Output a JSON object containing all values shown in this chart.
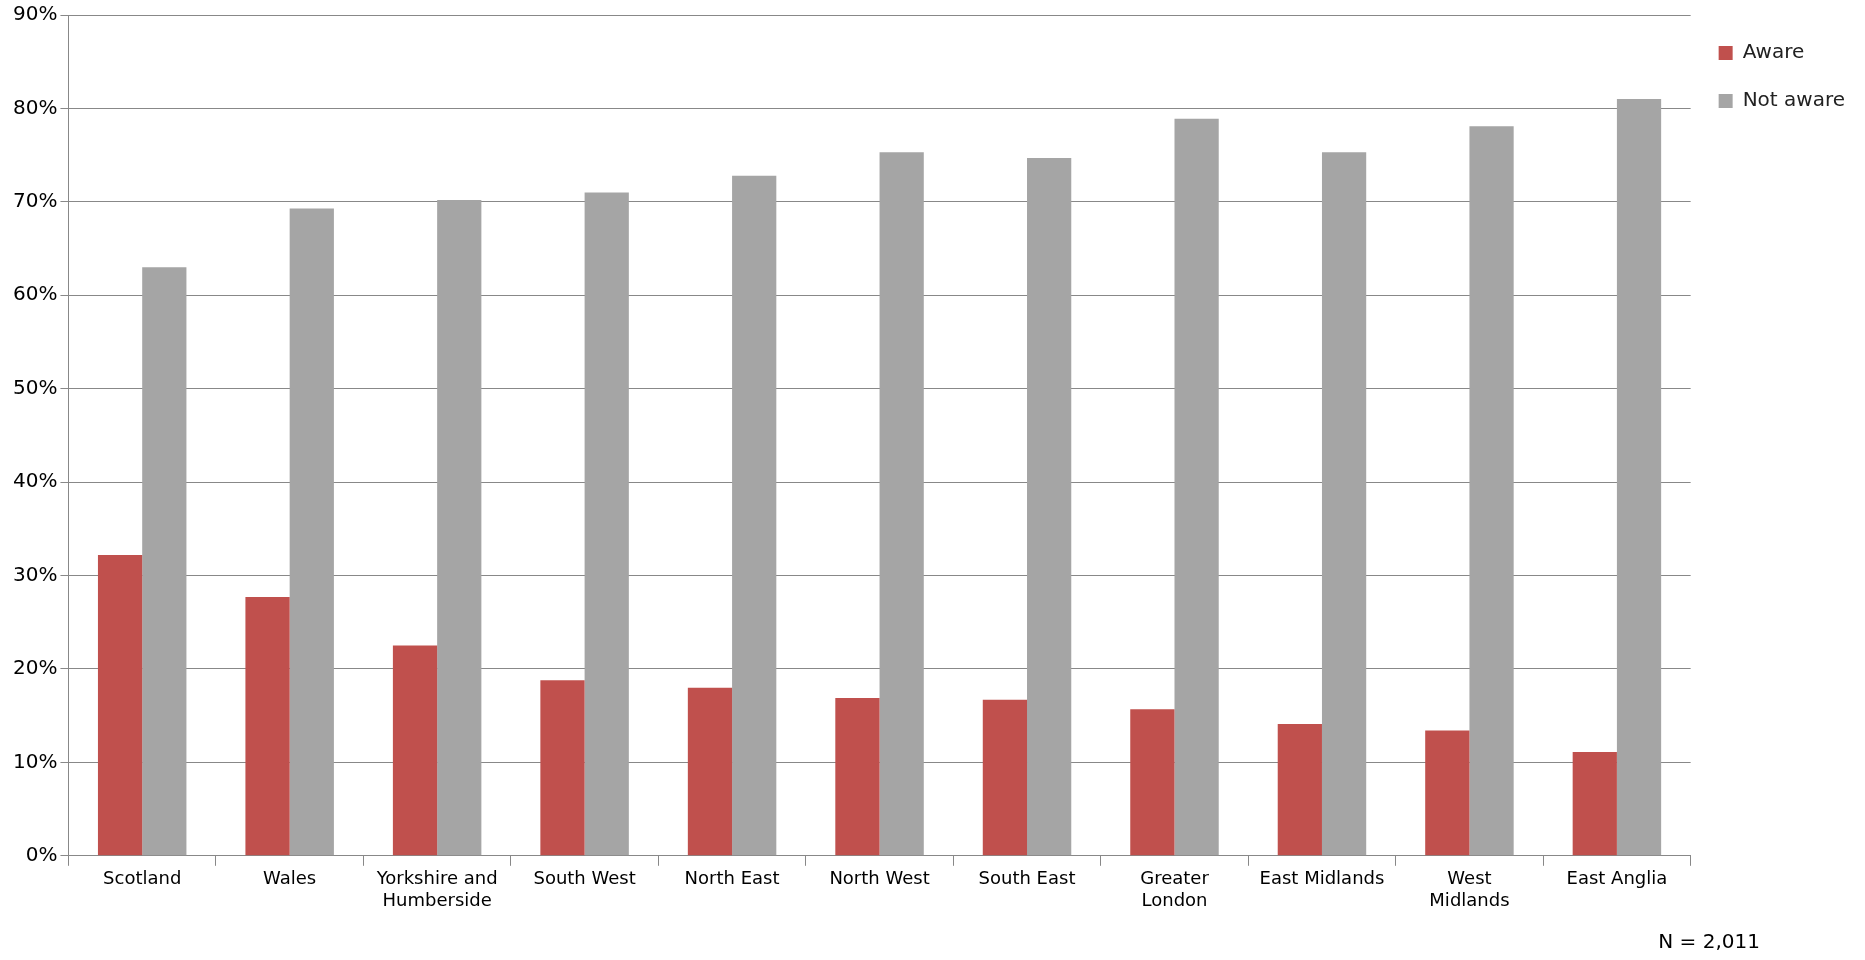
{
  "chart_data": {
    "type": "bar",
    "categories": [
      "Scotland",
      "Wales",
      "Yorkshire and Humberside",
      "South West",
      "North East",
      "North West",
      "South East",
      "Greater London",
      "East Midlands",
      "West Midlands",
      "East Anglia"
    ],
    "series": [
      {
        "name": "Aware",
        "color": "#c0504d",
        "values": [
          32.2,
          27.7,
          22.5,
          18.8,
          18.0,
          16.9,
          16.7,
          15.7,
          14.1,
          13.4,
          11.1
        ]
      },
      {
        "name": "Not aware",
        "color": "#a5a5a5",
        "values": [
          63.0,
          69.3,
          70.2,
          71.0,
          72.8,
          75.3,
          74.7,
          78.9,
          75.3,
          78.1,
          81.0
        ]
      }
    ],
    "ylim": [
      0,
      90
    ],
    "yticks": [
      {
        "value": 0,
        "label": "0%"
      },
      {
        "value": 10,
        "label": "10%"
      },
      {
        "value": 20,
        "label": "20%"
      },
      {
        "value": 30,
        "label": "30%"
      },
      {
        "value": 40,
        "label": "40%"
      },
      {
        "value": 50,
        "label": "50%"
      },
      {
        "value": 60,
        "label": "60%"
      },
      {
        "value": 70,
        "label": "70%"
      },
      {
        "value": 80,
        "label": "80%"
      },
      {
        "value": 90,
        "label": "90%"
      }
    ],
    "grid": "y",
    "legend": "right",
    "annotations": [
      "N = 2,011"
    ]
  }
}
